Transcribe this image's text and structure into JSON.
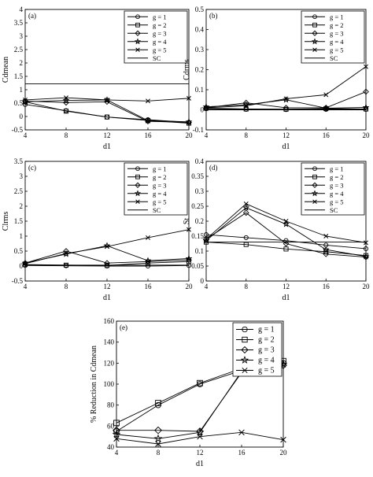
{
  "legend_labels": [
    "g = 1",
    "g = 2",
    "g = 3",
    "g = 4",
    "g = 5"
  ],
  "line_color": "#000000",
  "marker_names": [
    "circle",
    "square",
    "diamond",
    "star",
    "x"
  ],
  "chart_data": [
    {
      "type": "line",
      "panel": "(a)",
      "xlabel": "d1",
      "ylabel": "Cdmean",
      "xticks": [
        4,
        8,
        12,
        16,
        20
      ],
      "yticks": [
        "-0.5",
        "0",
        "0.5",
        "1",
        "1.5",
        "2",
        "2.5",
        "3",
        "3.5",
        "4"
      ],
      "xlim": [
        4,
        20
      ],
      "ylim": [
        -0.5,
        4
      ],
      "grid": false,
      "legend": "top-right",
      "x": [
        4,
        8,
        12,
        16,
        20
      ],
      "series": [
        {
          "name": "g = 1",
          "values": [
            0.45,
            0.22,
            -0.02,
            -0.12,
            -0.22
          ]
        },
        {
          "name": "g = 2",
          "values": [
            0.55,
            0.2,
            -0.02,
            -0.15,
            -0.25
          ]
        },
        {
          "name": "g = 3",
          "values": [
            0.58,
            0.52,
            0.55,
            -0.18,
            -0.22
          ]
        },
        {
          "name": "g = 4",
          "values": [
            0.55,
            0.6,
            0.62,
            -0.15,
            -0.2
          ]
        },
        {
          "name": "g = 5",
          "values": [
            0.62,
            0.7,
            0.62,
            0.58,
            0.68
          ]
        }
      ],
      "reference": {
        "name": "SC",
        "value": 1.22
      }
    },
    {
      "type": "line",
      "panel": "(b)",
      "xlabel": "d1",
      "ylabel": "Cdrms",
      "xticks": [
        4,
        8,
        12,
        16,
        20
      ],
      "yticks": [
        "-0.1",
        "0",
        "0.1",
        "0.2",
        "0.3",
        "0.4",
        "0.5"
      ],
      "xlim": [
        4,
        20
      ],
      "ylim": [
        -0.1,
        0.5
      ],
      "grid": false,
      "legend": "top-right",
      "x": [
        4,
        8,
        12,
        16,
        20
      ],
      "series": [
        {
          "name": "g = 1",
          "values": [
            0.005,
            0.002,
            0.001,
            0.002,
            0.002
          ]
        },
        {
          "name": "g = 2",
          "values": [
            0.008,
            0.004,
            0.003,
            0.006,
            0.004
          ]
        },
        {
          "name": "g = 3",
          "values": [
            0.01,
            0.035,
            0.01,
            0.01,
            0.09
          ]
        },
        {
          "name": "g = 4",
          "values": [
            0.015,
            0.025,
            0.05,
            0.008,
            0.012
          ]
        },
        {
          "name": "g = 5",
          "values": [
            0.01,
            0.02,
            0.055,
            0.075,
            0.215
          ]
        }
      ],
      "reference": {
        "name": "SC",
        "value": 0.0
      }
    },
    {
      "type": "line",
      "panel": "(c)",
      "xlabel": "d1",
      "ylabel": "Clrms",
      "xticks": [
        4,
        8,
        12,
        16,
        20
      ],
      "yticks": [
        "-0.5",
        "0",
        "0.5",
        "1",
        "1.5",
        "2",
        "2.5",
        "3",
        "3.5"
      ],
      "xlim": [
        4,
        20
      ],
      "ylim": [
        -0.5,
        3.5
      ],
      "grid": false,
      "legend": "top-right",
      "x": [
        4,
        8,
        12,
        16,
        20
      ],
      "series": [
        {
          "name": "g = 1",
          "values": [
            0.02,
            0.01,
            0.0,
            0.0,
            0.02
          ]
        },
        {
          "name": "g = 2",
          "values": [
            0.05,
            0.03,
            0.02,
            0.1,
            0.15
          ]
        },
        {
          "name": "g = 3",
          "values": [
            0.1,
            0.5,
            0.1,
            0.15,
            0.2
          ]
        },
        {
          "name": "g = 4",
          "values": [
            0.1,
            0.4,
            0.68,
            0.18,
            0.25
          ]
        },
        {
          "name": "g = 5",
          "values": [
            0.08,
            0.42,
            0.65,
            0.95,
            1.22
          ]
        }
      ],
      "reference": {
        "name": "SC",
        "value": 0.03
      }
    },
    {
      "type": "line",
      "panel": "(d)",
      "xlabel": "d1",
      "ylabel": "St",
      "xticks": [
        4,
        8,
        12,
        16,
        20
      ],
      "yticks": [
        "0",
        "0.05",
        "0.1",
        "0.15",
        "0.2",
        "0.25",
        "0.3",
        "0.35",
        "0.4"
      ],
      "xlim": [
        4,
        20
      ],
      "ylim": [
        0,
        0.4
      ],
      "grid": false,
      "legend": "top-right",
      "x": [
        4,
        8,
        12,
        16,
        20
      ],
      "series": [
        {
          "name": "g = 1",
          "values": [
            0.155,
            0.145,
            0.135,
            0.12,
            0.108
          ]
        },
        {
          "name": "g = 2",
          "values": [
            0.13,
            0.122,
            0.107,
            0.098,
            0.085
          ]
        },
        {
          "name": "g = 3",
          "values": [
            0.14,
            0.228,
            0.125,
            0.09,
            0.08
          ]
        },
        {
          "name": "g = 4",
          "values": [
            0.135,
            0.245,
            0.19,
            0.105,
            0.082
          ]
        },
        {
          "name": "g = 5",
          "values": [
            0.14,
            0.258,
            0.2,
            0.15,
            0.128
          ]
        }
      ],
      "reference": {
        "name": "SC",
        "value": 0.13
      }
    },
    {
      "type": "line",
      "panel": "(e)",
      "xlabel": "d1",
      "ylabel": "% Reduction in Cdmean",
      "xticks": [
        4,
        8,
        12,
        16,
        20
      ],
      "yticks": [
        "40",
        "60",
        "80",
        "100",
        "120",
        "140",
        "160"
      ],
      "xlim": [
        4,
        20
      ],
      "ylim": [
        40,
        160
      ],
      "grid": false,
      "legend": "top-right",
      "x": [
        4,
        8,
        12,
        16,
        20
      ],
      "series": [
        {
          "name": "g = 1",
          "values": [
            55,
            80,
            100,
            113,
            120
          ]
        },
        {
          "name": "g = 2",
          "values": [
            63,
            82,
            101,
            115,
            122
          ]
        },
        {
          "name": "g = 3",
          "values": [
            56,
            56,
            55,
            111,
            118
          ]
        },
        {
          "name": "g = 4",
          "values": [
            52,
            48,
            54,
            112,
            119
          ]
        },
        {
          "name": "g = 5",
          "values": [
            48,
            43,
            50,
            54,
            47
          ]
        }
      ]
    }
  ]
}
